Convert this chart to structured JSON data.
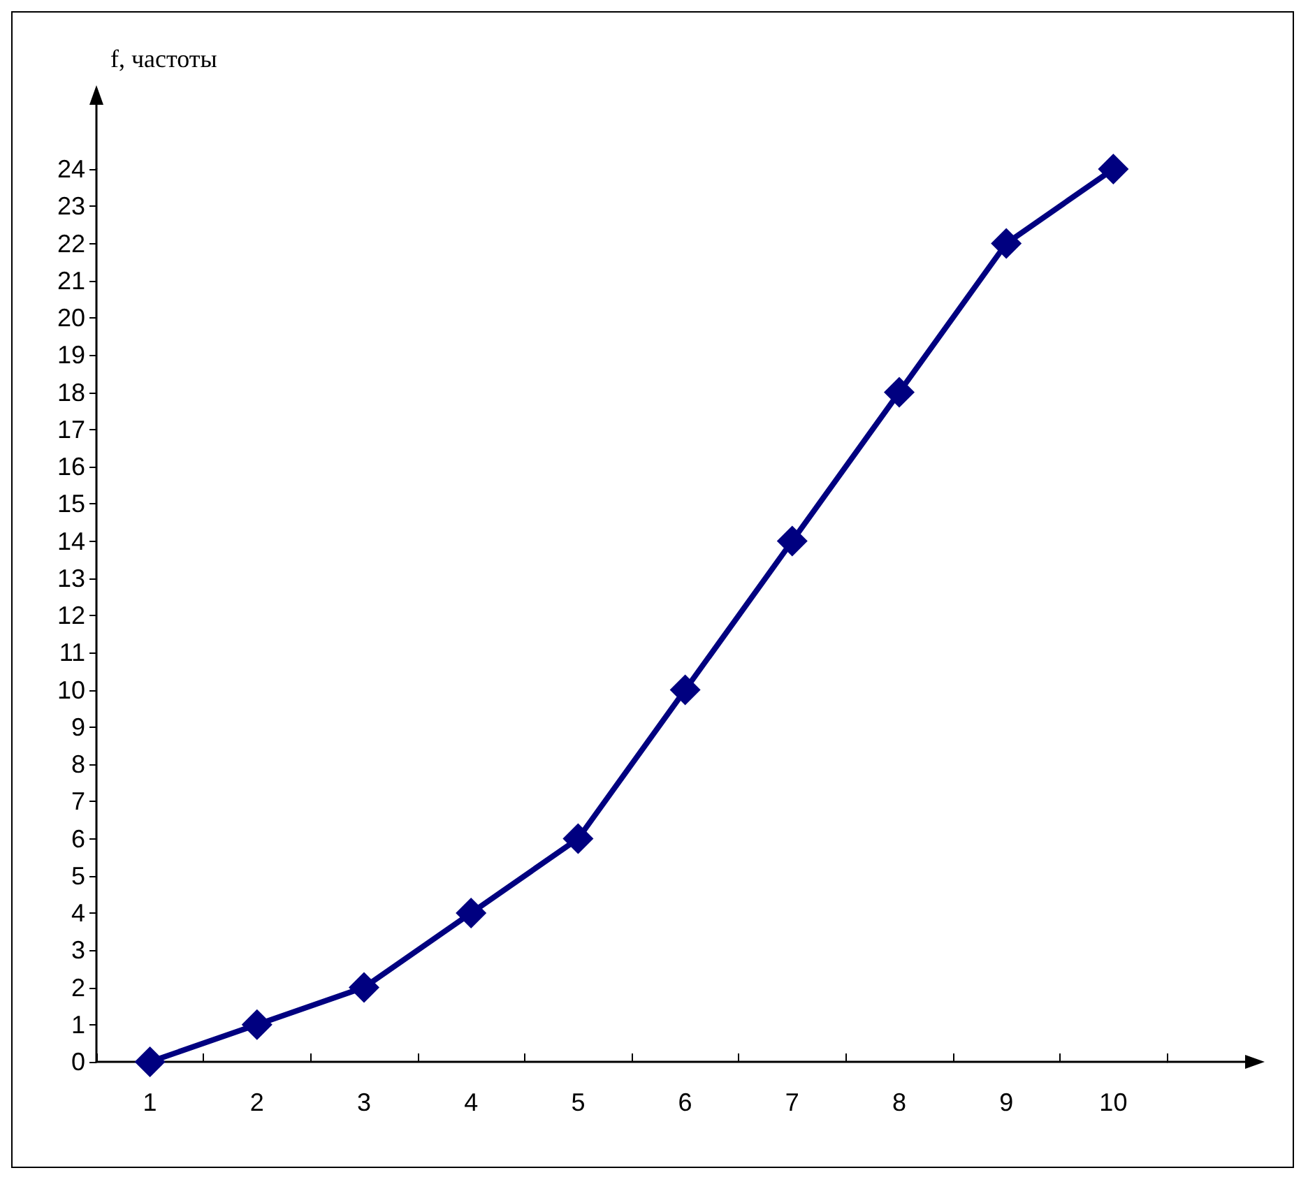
{
  "chart_data": {
    "type": "line",
    "ylabel": "f, частоты",
    "categories": [
      "1",
      "2",
      "3",
      "4",
      "5",
      "6",
      "7",
      "8",
      "9",
      "10"
    ],
    "series": [
      {
        "color": "#000080",
        "values": [
          0,
          1,
          2,
          4,
          6,
          10,
          14,
          18,
          22,
          24
        ]
      }
    ],
    "ylim": [
      0,
      24
    ],
    "yticks": [
      0,
      1,
      2,
      3,
      4,
      5,
      6,
      7,
      8,
      9,
      10,
      11,
      12,
      13,
      14,
      15,
      16,
      17,
      18,
      19,
      20,
      21,
      22,
      23,
      24
    ],
    "grid": false,
    "marker": "diamond",
    "line_style": "solid"
  }
}
